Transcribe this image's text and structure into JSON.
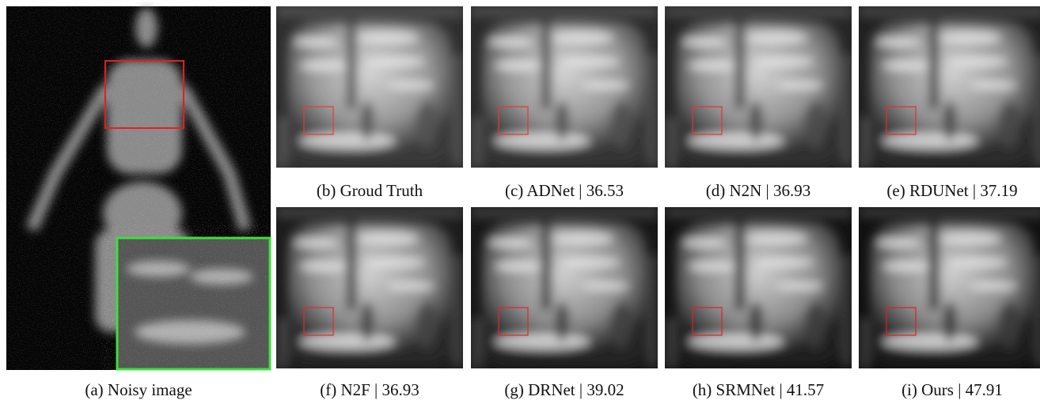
{
  "figure": {
    "panels": [
      {
        "caption": "(a) Noisy image"
      },
      {
        "caption": "(b) Groud Truth"
      },
      {
        "caption": "(c) ADNet | 36.53"
      },
      {
        "caption": "(d) N2N | 36.93"
      },
      {
        "caption": "(e) RDUNet | 37.19"
      },
      {
        "caption": "(f) N2F | 36.93"
      },
      {
        "caption": "(g) DRNet | 39.02"
      },
      {
        "caption": "(h) SRMNet | 41.57"
      },
      {
        "caption": "(i) Ours | 47.91"
      }
    ]
  }
}
